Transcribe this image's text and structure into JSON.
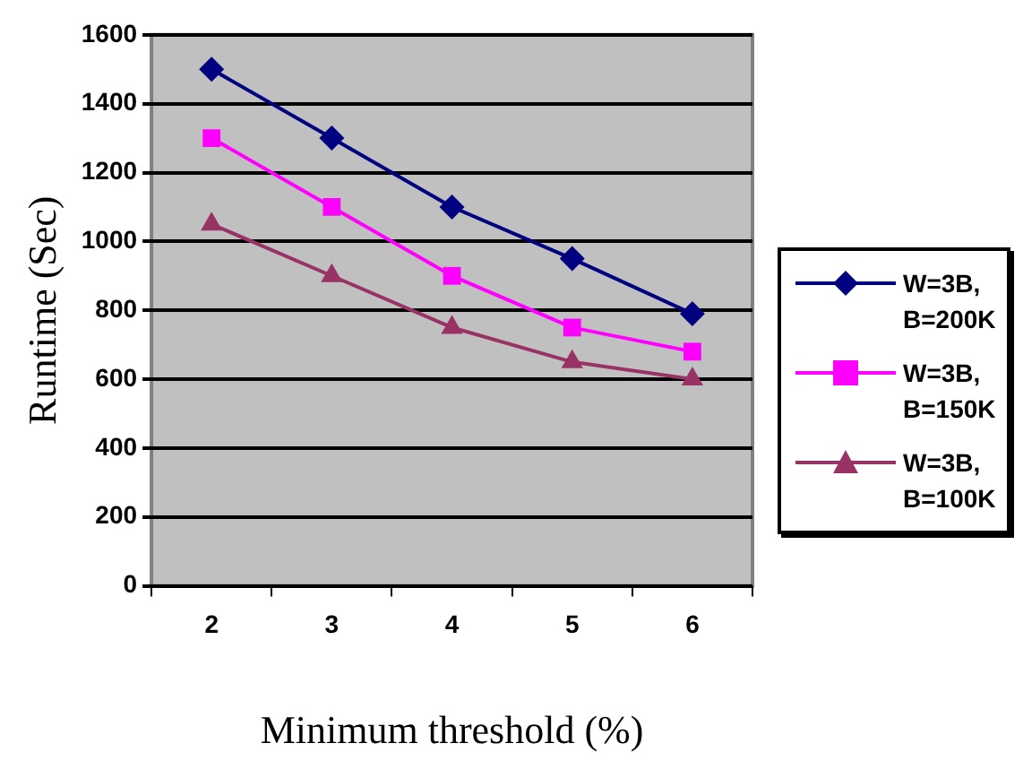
{
  "chart_data": {
    "type": "line",
    "xlabel": "Minimum threshold (%)",
    "ylabel": "Runtime (Sec)",
    "categories": [
      "2",
      "3",
      "4",
      "5",
      "6"
    ],
    "series": [
      {
        "name": "W=3B, B=200K",
        "color": "#000080",
        "marker": "diamond",
        "values": [
          1500,
          1300,
          1100,
          950,
          790
        ]
      },
      {
        "name": "W=3B, B=150K",
        "color": "#ff00ff",
        "marker": "square",
        "values": [
          1300,
          1100,
          900,
          750,
          680
        ]
      },
      {
        "name": "W=3B, B=100K",
        "color": "#993366",
        "marker": "triangle",
        "values": [
          1050,
          900,
          750,
          650,
          600
        ]
      }
    ],
    "ylim": [
      0,
      1600
    ],
    "yticks": [
      0,
      200,
      400,
      600,
      800,
      1000,
      1200,
      1400,
      1600
    ],
    "grid": "y",
    "legend": "right",
    "line_style": "solid"
  }
}
